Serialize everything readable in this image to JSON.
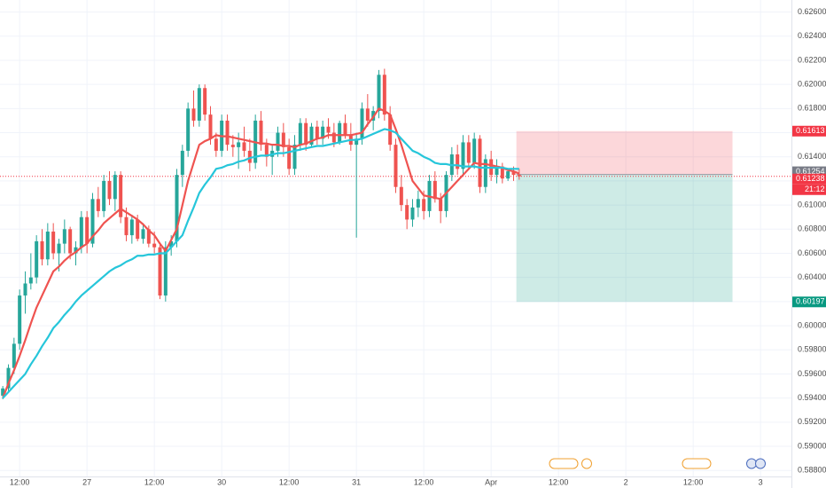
{
  "chart_data": {
    "type": "candlestick",
    "categories": [
      null,
      null,
      null,
      "12:00",
      null,
      null,
      null,
      null,
      null,
      null,
      null,
      null,
      null,
      null,
      null,
      "27",
      null,
      null,
      null,
      null,
      null,
      null,
      null,
      null,
      null,
      null,
      null,
      "12:00",
      null,
      null,
      null,
      null,
      null,
      null,
      null,
      null,
      null,
      null,
      null,
      "30",
      null,
      null,
      null,
      null,
      null,
      null,
      null,
      null,
      null,
      null,
      null,
      "12:00",
      null,
      null,
      null,
      null,
      null,
      null,
      null,
      null,
      null,
      null,
      null,
      "31",
      null,
      null,
      null,
      null,
      null,
      null,
      null,
      null,
      null,
      null,
      null,
      "12:00",
      null,
      null,
      null,
      null,
      null,
      null,
      null,
      null,
      null,
      null,
      null,
      "Apr",
      null,
      null,
      null,
      null,
      null,
      null,
      null,
      null,
      null,
      null,
      null,
      "12:00",
      null,
      null,
      null,
      null,
      null,
      null,
      null,
      null,
      null,
      null,
      null,
      "2",
      null,
      null,
      null,
      null,
      null,
      null,
      null,
      null,
      null,
      null,
      null,
      "12:00",
      null,
      null,
      null,
      null,
      null,
      null,
      null,
      null,
      null,
      null,
      null,
      "3",
      null,
      null,
      null,
      null,
      null
    ],
    "open": [
      0.5942,
      0.5948,
      0.5965,
      0.5985,
      0.6025,
      0.6035,
      0.604,
      0.607,
      0.6055,
      0.6078,
      0.606,
      0.6068,
      0.608,
      0.606,
      0.6065,
      0.609,
      0.6068,
      0.6105,
      0.6095,
      0.612,
      0.6105,
      0.6125,
      0.609,
      0.6075,
      0.6088,
      0.6072,
      0.608,
      0.6068,
      0.6065,
      0.6025,
      0.6065,
      0.607,
      0.6125,
      0.6145,
      0.618,
      0.617,
      0.6197,
      0.6175,
      0.6155,
      0.6145,
      0.617,
      0.615,
      0.6148,
      0.6152,
      0.6145,
      0.6135,
      0.617,
      0.615,
      0.614,
      0.6145,
      0.616,
      0.6148,
      0.613,
      0.615,
      0.6168,
      0.615,
      0.6165,
      0.6155,
      0.6165,
      0.616,
      0.6152,
      0.6168,
      0.6158,
      0.615,
      0.6155,
      0.618,
      0.617,
      0.6178,
      0.6208,
      0.6175,
      0.615,
      0.6115,
      0.61,
      0.6088,
      0.6098,
      0.6105,
      0.6095,
      0.612,
      0.6105,
      0.6095,
      0.6125,
      0.6142,
      0.613,
      0.6152,
      0.6135,
      0.6155,
      0.6115,
      0.6138,
      0.6125,
      0.6132,
      0.6122,
      0.6128,
      0.6125,
      null,
      null,
      null,
      null,
      null,
      null,
      null,
      null,
      null,
      null,
      null,
      null,
      null,
      null,
      null,
      null,
      null,
      null,
      null,
      null,
      null,
      null,
      null,
      null,
      null,
      null,
      null,
      null,
      null,
      null,
      null,
      null,
      null,
      null,
      null,
      null,
      null,
      null,
      null,
      null,
      null,
      null,
      null,
      null,
      null,
      null,
      null,
      null
    ],
    "high": [
      0.595,
      0.5968,
      0.599,
      0.603,
      0.6045,
      0.606,
      0.6075,
      0.608,
      0.6085,
      0.6085,
      0.6072,
      0.6088,
      0.6082,
      0.607,
      0.6095,
      0.6095,
      0.611,
      0.6115,
      0.6125,
      0.6128,
      0.6128,
      0.6128,
      0.6098,
      0.6092,
      0.6092,
      0.6085,
      0.6083,
      0.6078,
      0.6068,
      0.607,
      0.6075,
      0.613,
      0.615,
      0.6185,
      0.6195,
      0.62,
      0.62,
      0.6182,
      0.616,
      0.6175,
      0.6175,
      0.6158,
      0.616,
      0.6165,
      0.6155,
      0.6175,
      0.6178,
      0.6155,
      0.615,
      0.6165,
      0.6168,
      0.6155,
      0.6158,
      0.6172,
      0.6172,
      0.6168,
      0.617,
      0.617,
      0.6172,
      0.6168,
      0.617,
      0.6175,
      0.6168,
      0.616,
      0.6185,
      0.6192,
      0.6182,
      0.6212,
      0.6213,
      0.6182,
      0.6155,
      0.6125,
      0.6105,
      0.6105,
      0.6112,
      0.6112,
      0.6125,
      0.6128,
      0.611,
      0.6128,
      0.6148,
      0.615,
      0.6158,
      0.6158,
      0.616,
      0.6158,
      0.6142,
      0.6145,
      0.6138,
      0.6135,
      0.613,
      0.6132,
      0.613,
      null,
      null,
      null,
      null,
      null,
      null,
      null,
      null,
      null,
      null,
      null,
      null,
      null,
      null,
      null,
      null,
      null,
      null,
      null,
      null,
      null,
      null,
      null,
      null,
      null,
      null,
      null,
      null,
      null,
      null,
      null,
      null,
      null,
      null,
      null,
      null,
      null,
      null,
      null,
      null,
      null,
      null,
      null,
      null,
      null,
      null,
      null,
      null
    ],
    "low": [
      0.5939,
      0.5945,
      0.596,
      0.598,
      0.601,
      0.603,
      0.6035,
      0.605,
      0.605,
      0.6055,
      0.6045,
      0.606,
      0.6055,
      0.605,
      0.606,
      0.606,
      0.6065,
      0.609,
      0.609,
      0.61,
      0.6095,
      0.6085,
      0.607,
      0.6068,
      0.607,
      0.6068,
      0.6065,
      0.606,
      0.6022,
      0.602,
      0.6058,
      0.6065,
      0.6115,
      0.614,
      0.6165,
      0.6165,
      0.617,
      0.615,
      0.614,
      0.614,
      0.6145,
      0.614,
      0.613,
      0.614,
      0.6128,
      0.613,
      0.6145,
      0.6132,
      0.6125,
      0.614,
      0.614,
      0.6125,
      0.6125,
      0.6145,
      0.6145,
      0.6148,
      0.615,
      0.615,
      0.6155,
      0.6148,
      0.615,
      0.6155,
      0.6145,
      0.6073,
      0.615,
      0.6165,
      0.6162,
      0.6172,
      0.617,
      0.6145,
      0.611,
      0.6095,
      0.608,
      0.6082,
      0.609,
      0.6088,
      0.609,
      0.6102,
      0.6085,
      0.609,
      0.612,
      0.6125,
      0.6125,
      0.613,
      0.613,
      0.611,
      0.611,
      0.612,
      0.6118,
      0.6118,
      0.612,
      0.612,
      0.6121,
      null,
      null,
      null,
      null,
      null,
      null,
      null,
      null,
      null,
      null,
      null,
      null,
      null,
      null,
      null,
      null,
      null,
      null,
      null,
      null,
      null,
      null,
      null,
      null,
      null,
      null,
      null,
      null,
      null,
      null,
      null,
      null,
      null,
      null,
      null,
      null,
      null,
      null,
      null,
      null,
      null,
      null,
      null,
      null,
      null,
      null,
      null,
      null
    ],
    "close": [
      0.5948,
      0.5965,
      0.5985,
      0.6025,
      0.6035,
      0.604,
      0.607,
      0.6055,
      0.6078,
      0.606,
      0.6068,
      0.608,
      0.606,
      0.6065,
      0.609,
      0.6068,
      0.6105,
      0.6095,
      0.612,
      0.6105,
      0.6125,
      0.609,
      0.6075,
      0.6088,
      0.6072,
      0.608,
      0.6068,
      0.6065,
      0.6025,
      0.6065,
      0.607,
      0.6125,
      0.6145,
      0.618,
      0.617,
      0.6197,
      0.6175,
      0.6155,
      0.6145,
      0.617,
      0.615,
      0.6148,
      0.6152,
      0.6145,
      0.6135,
      0.617,
      0.615,
      0.614,
      0.6145,
      0.616,
      0.6148,
      0.613,
      0.615,
      0.6168,
      0.615,
      0.6165,
      0.6155,
      0.6165,
      0.616,
      0.6152,
      0.6168,
      0.6158,
      0.615,
      0.6155,
      0.618,
      0.617,
      0.6178,
      0.6208,
      0.6175,
      0.615,
      0.6115,
      0.61,
      0.6088,
      0.6098,
      0.6105,
      0.6095,
      0.612,
      0.6105,
      0.6095,
      0.6125,
      0.6142,
      0.613,
      0.6152,
      0.6135,
      0.6155,
      0.6115,
      0.6138,
      0.6125,
      0.6132,
      0.6122,
      0.6128,
      0.6125,
      0.61238,
      null,
      null,
      null,
      null,
      null,
      null,
      null,
      null,
      null,
      null,
      null,
      null,
      null,
      null,
      null,
      null,
      null,
      null,
      null,
      null,
      null,
      null,
      null,
      null,
      null,
      null,
      null,
      null,
      null,
      null,
      null,
      null,
      null,
      null,
      null,
      null,
      null,
      null,
      null,
      null,
      null,
      null,
      null,
      null,
      null,
      null,
      null,
      null
    ],
    "up_color": "#26a69a",
    "down_color": "#ef5350",
    "series": [
      {
        "color": "#ef5350",
        "values": [
          0.594,
          0.5952,
          0.5963,
          0.5975,
          0.5988,
          0.6002,
          0.6015,
          0.6025,
          0.6035,
          0.6045,
          0.6049,
          0.6054,
          0.6058,
          0.6061,
          0.6065,
          0.6068,
          0.6074,
          0.6079,
          0.6085,
          0.6089,
          0.6093,
          0.6097,
          0.6094,
          0.6091,
          0.6088,
          0.6084,
          0.6079,
          0.6075,
          0.6068,
          0.6062,
          0.6071,
          0.608,
          0.61,
          0.612,
          0.6135,
          0.615,
          0.6153,
          0.6155,
          0.6158,
          0.6157,
          0.6157,
          0.6156,
          0.6155,
          0.6154,
          0.6153,
          0.6152,
          0.6151,
          0.6151,
          0.615,
          0.615,
          0.6149,
          0.6149,
          0.6148,
          0.615,
          0.6151,
          0.6153,
          0.6155,
          0.6156,
          0.6158,
          0.6158,
          0.6158,
          0.6158,
          0.6158,
          0.6159,
          0.616,
          0.6167,
          0.6173,
          0.618,
          0.6178,
          0.6175,
          0.6163,
          0.615,
          0.6135,
          0.612,
          0.6114,
          0.6108,
          0.6107,
          0.6106,
          0.6105,
          0.611,
          0.6115,
          0.612,
          0.6125,
          0.613,
          0.6135,
          0.6134,
          0.6134,
          0.6133,
          0.6132,
          0.6131,
          0.6129,
          0.6128,
          0.6126,
          null,
          null,
          null,
          null,
          null,
          null,
          null,
          null,
          null,
          null,
          null,
          null,
          null,
          null,
          null,
          null,
          null,
          null,
          null,
          null,
          null,
          null,
          null,
          null,
          null,
          null,
          null,
          null,
          null,
          null,
          null,
          null,
          null,
          null,
          null,
          null,
          null,
          null,
          null,
          null,
          null,
          null,
          null,
          null,
          null,
          null,
          null,
          null
        ]
      },
      {
        "color": "#26c6da",
        "values": [
          0.594,
          0.5945,
          0.595,
          0.5955,
          0.596,
          0.5968,
          0.5975,
          0.5983,
          0.599,
          0.5998,
          0.6003,
          0.6009,
          0.6014,
          0.602,
          0.6025,
          0.6029,
          0.6033,
          0.6037,
          0.6041,
          0.6045,
          0.6048,
          0.605,
          0.6053,
          0.6055,
          0.6058,
          0.6058,
          0.6059,
          0.6059,
          0.606,
          0.606,
          0.6065,
          0.607,
          0.6075,
          0.6087,
          0.6098,
          0.611,
          0.6117,
          0.6123,
          0.613,
          0.6131,
          0.6133,
          0.6134,
          0.6136,
          0.6137,
          0.6139,
          0.614,
          0.6141,
          0.6141,
          0.6142,
          0.6143,
          0.6143,
          0.6144,
          0.6145,
          0.6146,
          0.6147,
          0.6148,
          0.6149,
          0.6149,
          0.615,
          0.6151,
          0.6152,
          0.6153,
          0.6154,
          0.6154,
          0.6155,
          0.6157,
          0.6159,
          0.6161,
          0.6163,
          0.6162,
          0.616,
          0.6155,
          0.615,
          0.6145,
          0.6143,
          0.614,
          0.6138,
          0.6135,
          0.6134,
          0.6134,
          0.6133,
          0.6133,
          0.6132,
          0.6132,
          0.6132,
          0.6131,
          0.6131,
          0.6131,
          0.6131,
          0.6131,
          0.613,
          0.613,
          0.613,
          null,
          null,
          null,
          null,
          null,
          null,
          null,
          null,
          null,
          null,
          null,
          null,
          null,
          null,
          null,
          null,
          null,
          null,
          null,
          null,
          null,
          null,
          null,
          null,
          null,
          null,
          null,
          null,
          null,
          null,
          null,
          null,
          null,
          null,
          null,
          null,
          null,
          null,
          null,
          null,
          null,
          null,
          null,
          null,
          null,
          null,
          null,
          null
        ]
      }
    ],
    "ylim": [
      0.5875,
      0.627
    ],
    "yticks": [
      {
        "value": 0.588,
        "label": "0.58800"
      },
      {
        "value": 0.59,
        "label": "0.59000"
      },
      {
        "value": 0.592,
        "label": "0.59200"
      },
      {
        "value": 0.594,
        "label": "0.59400"
      },
      {
        "value": 0.596,
        "label": "0.59600"
      },
      {
        "value": 0.598,
        "label": "0.59800"
      },
      {
        "value": 0.6,
        "label": "0.60000"
      },
      {
        "value": 0.602,
        "label": "0.60200"
      },
      {
        "value": 0.604,
        "label": "0.60400"
      },
      {
        "value": 0.606,
        "label": "0.60600"
      },
      {
        "value": 0.608,
        "label": "0.60800"
      },
      {
        "value": 0.61,
        "label": "0.61000"
      },
      {
        "value": 0.612,
        "label": "0.61200"
      },
      {
        "value": 0.614,
        "label": "0.61400"
      },
      {
        "value": 0.616,
        "label": "0.61600"
      },
      {
        "value": 0.618,
        "label": "0.61800"
      },
      {
        "value": 0.62,
        "label": "0.62000"
      },
      {
        "value": 0.622,
        "label": "0.62200"
      },
      {
        "value": 0.624,
        "label": "0.62400"
      },
      {
        "value": 0.626,
        "label": "0.62600"
      }
    ],
    "grid": true,
    "price_line": {
      "value": 0.61238,
      "label": "0.61238",
      "countdown": "21:12",
      "color": "#f23645"
    },
    "position": {
      "stop": {
        "value": 0.61613,
        "label": "0.61613"
      },
      "entry": {
        "value": 0.61254,
        "label": "0.61254"
      },
      "target": {
        "value": 0.60197,
        "label": "0.60197"
      },
      "stop_color": "#f23645",
      "target_color": "#089981"
    }
  }
}
